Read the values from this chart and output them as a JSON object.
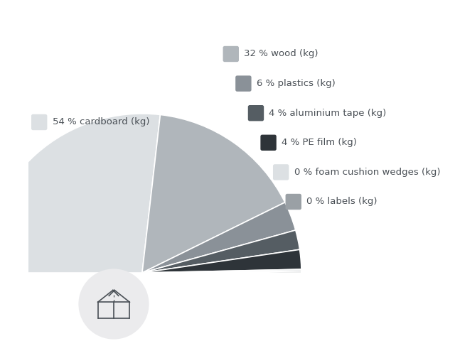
{
  "labels": [
    "54 % cardboard (kg)",
    "32 % wood (kg)",
    "6 % plastics (kg)",
    "4 % aluminium tape (kg)",
    "4 % PE film (kg)",
    "0 % foam cushion wedges (kg)",
    "0 % labels (kg)"
  ],
  "values": [
    54,
    32,
    6,
    4,
    4,
    0.4,
    0.3
  ],
  "slice_colors": [
    "#dce0e3",
    "#b0b6bb",
    "#8a9198",
    "#555d63",
    "#2e3439",
    "#e8eaeb",
    "#9aa0a5"
  ],
  "legend_colors": [
    "#b0b6bb",
    "#8a9198",
    "#555d63",
    "#2e3439",
    "#dce0e3",
    "#9aa0a5"
  ],
  "cardboard_swatch_color": "#dce0e3",
  "background_color": "#ffffff",
  "font_color": "#4a5056",
  "font_size": 9.5,
  "circle_bg_color": "#ebebed",
  "box_icon_color": "#4a5056"
}
